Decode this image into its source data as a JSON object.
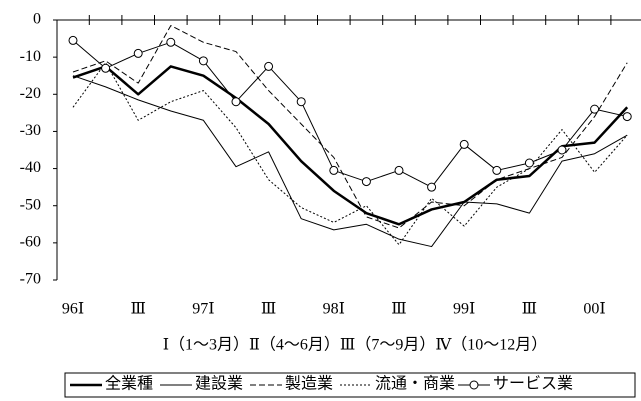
{
  "chart_data": {
    "type": "line",
    "categories": [
      "96Ⅰ",
      null,
      "Ⅲ",
      null,
      "97Ⅰ",
      null,
      "Ⅲ",
      null,
      "98Ⅰ",
      null,
      "Ⅲ",
      null,
      "99Ⅰ",
      null,
      "Ⅲ",
      null,
      "00Ⅰ",
      null
    ],
    "subtitle": "Ⅰ（1～3月）Ⅱ（4～6月）Ⅲ（7～9月）Ⅳ（10～12月）",
    "ylim": [
      -70,
      0
    ],
    "yticks": [
      0,
      -10,
      -20,
      -30,
      -40,
      -50,
      -60,
      -70
    ],
    "series": [
      {
        "name": "全業種",
        "color": "#000000",
        "linestyle": "solid",
        "linewidth": 2.5,
        "values": [
          -15.5,
          -12.5,
          -20,
          -12.5,
          -15,
          -21,
          -28,
          -38,
          -46,
          -52,
          -55,
          -51,
          -49,
          -43,
          -42,
          -34,
          -33,
          -23.5
        ]
      },
      {
        "name": "建設業",
        "color": "#000000",
        "linestyle": "solid",
        "linewidth": 1,
        "values": [
          -15,
          -18,
          -21.5,
          -24.5,
          -27,
          -39.5,
          -35.5,
          -53.5,
          -56.5,
          -55,
          -59,
          -61,
          -49,
          -49.5,
          -52,
          -38,
          -36,
          -31
        ]
      },
      {
        "name": "製造業",
        "color": "#000000",
        "linestyle": "dashed",
        "linewidth": 1,
        "values": [
          -14,
          -11,
          -17,
          -1.5,
          -6,
          -8.5,
          -19,
          -28,
          -37,
          -53,
          -56,
          -49,
          -50,
          -43,
          -40,
          -37,
          -26,
          -11.5
        ]
      },
      {
        "name": "流通・商業",
        "color": "#000000",
        "linestyle": "dotted",
        "linewidth": 1,
        "values": [
          -23.5,
          -11.5,
          -27,
          -22,
          -19,
          -29,
          -43,
          -50.5,
          -54.5,
          -50,
          -60.5,
          -48,
          -55.5,
          -45,
          -40,
          -29.5,
          -41,
          -31
        ]
      },
      {
        "name": "サービス業",
        "color": "#000000",
        "linestyle": "solid",
        "linewidth": 1,
        "marker": "circle",
        "values": [
          -5.5,
          -13,
          -9,
          -6,
          -11,
          -22,
          -12.5,
          -22,
          -40.5,
          -43.5,
          -40.5,
          -45,
          -33.5,
          -40.5,
          -38.5,
          -35,
          -24,
          -26
        ]
      }
    ]
  }
}
